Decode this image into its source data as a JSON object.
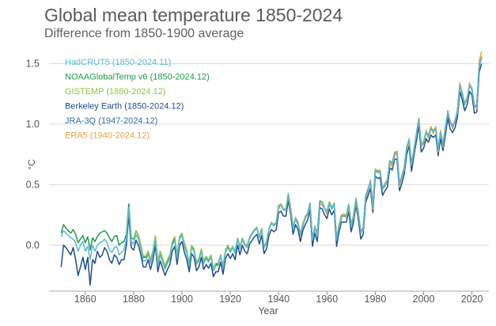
{
  "title": "Global mean temperature 1850-2024",
  "subtitle": "Difference from 1850-1900 average",
  "chart_data": {
    "type": "line",
    "title": "Global mean temperature 1850-2024",
    "subtitle": "Difference from 1850-1900 average",
    "xlabel": "Year",
    "ylabel": "°C",
    "xlim": [
      1845,
      2027
    ],
    "ylim": [
      -0.38,
      1.62
    ],
    "xticks": [
      1860,
      1880,
      1900,
      1920,
      1940,
      1960,
      1980,
      2000,
      2020
    ],
    "yticks": [
      0.0,
      0.5,
      1.0,
      1.5
    ],
    "ytick_labels": [
      "0.0",
      "0.5",
      "1.0",
      "1.5"
    ],
    "grid": "horizontal",
    "legend_position": "top-left",
    "series": [
      {
        "name": "HadCRUT5 (1850-2024.11)",
        "color": "#5bb8d4",
        "start": 1850,
        "values": [
          0.07,
          0.12,
          0.1,
          0.08,
          0.06,
          0.05,
          0.02,
          -0.05,
          0.0,
          0.03,
          -0.05,
          -0.01,
          -0.12,
          0.0,
          -0.05,
          0.0,
          0.02,
          0.03,
          0.05,
          0.02,
          -0.04,
          -0.06,
          -0.02,
          -0.01,
          -0.08,
          -0.06,
          -0.04,
          0.05,
          0.31,
          0.03,
          0.01,
          0.09,
          0.05,
          -0.03,
          -0.13,
          -0.13,
          -0.07,
          -0.15,
          -0.07,
          0.05,
          -0.17,
          -0.08,
          -0.14,
          -0.2,
          -0.15,
          -0.11,
          0.0,
          0.04,
          -0.11,
          0.05,
          0.08,
          -0.01,
          -0.07,
          -0.17,
          -0.02,
          -0.05,
          -0.16,
          -0.13,
          -0.05,
          -0.15,
          -0.11,
          -0.14,
          -0.1,
          -0.21,
          -0.17,
          -0.17,
          -0.09,
          -0.19,
          -0.06,
          -0.02,
          -0.06,
          -0.02,
          -0.07,
          0.05,
          -0.03,
          0.05,
          0.0,
          -0.02,
          0.06,
          0.09,
          0.12,
          0.14,
          0.06,
          0.13,
          -0.02,
          0.02,
          0.13,
          0.18,
          0.16,
          0.18,
          0.32,
          0.33,
          0.29,
          0.29,
          0.42,
          0.3,
          0.14,
          0.22,
          0.18,
          0.08,
          0.17,
          0.22,
          0.26,
          0.34,
          0.04,
          0.15,
          0.08,
          0.36,
          0.35,
          0.3,
          0.27,
          0.35,
          0.3,
          0.34,
          0.04,
          0.16,
          0.24,
          0.24,
          0.24,
          0.33,
          0.16,
          0.24,
          0.38,
          0.26,
          0.1,
          0.14,
          0.4,
          0.46,
          0.52,
          0.32,
          0.62,
          0.6,
          0.61,
          0.46,
          0.5,
          0.53,
          0.69,
          0.67,
          0.76,
          0.76,
          0.5,
          0.56,
          0.64,
          0.8,
          0.87,
          0.66,
          0.79,
          0.91,
          1.04,
          0.82,
          0.85,
          0.93,
          0.9,
          0.96,
          0.94,
          0.96,
          0.79,
          0.93,
          0.83,
          0.96,
          1.1,
          1.01,
          0.98,
          1.02,
          1.11,
          1.32,
          1.25,
          1.16,
          1.21,
          1.32,
          1.29,
          1.14,
          1.15,
          1.48,
          1.55
        ]
      },
      {
        "name": "NOAAGlobalTemp v6 (1850-2024.12)",
        "color": "#1f9a4b",
        "start": 1850,
        "values": [
          0.1,
          0.17,
          0.14,
          0.12,
          0.1,
          0.13,
          0.09,
          0.02,
          0.05,
          0.08,
          0.02,
          0.07,
          -0.04,
          0.06,
          0.03,
          0.07,
          0.1,
          0.11,
          0.12,
          0.1,
          0.06,
          0.03,
          0.07,
          0.08,
          0.0,
          0.02,
          0.03,
          0.09,
          0.34,
          0.06,
          0.05,
          0.12,
          0.08,
          0.0,
          -0.1,
          -0.1,
          -0.06,
          -0.13,
          -0.06,
          0.07,
          -0.15,
          -0.07,
          -0.12,
          -0.18,
          -0.14,
          -0.1,
          0.01,
          0.06,
          -0.09,
          0.06,
          0.09,
          0.0,
          -0.06,
          -0.16,
          -0.01,
          -0.04,
          -0.15,
          -0.12,
          -0.05,
          -0.14,
          -0.1,
          -0.13,
          -0.09,
          -0.2,
          -0.16,
          -0.16,
          -0.09,
          -0.18,
          -0.05,
          -0.01,
          -0.05,
          -0.02,
          -0.06,
          0.05,
          -0.02,
          0.05,
          0.0,
          -0.01,
          0.06,
          0.09,
          0.12,
          0.14,
          0.06,
          0.13,
          -0.02,
          0.02,
          0.13,
          0.18,
          0.16,
          0.18,
          0.32,
          0.33,
          0.29,
          0.29,
          0.42,
          0.3,
          0.14,
          0.22,
          0.18,
          0.08,
          0.17,
          0.22,
          0.26,
          0.34,
          0.04,
          0.15,
          0.08,
          0.36,
          0.35,
          0.3,
          0.27,
          0.35,
          0.3,
          0.34,
          0.04,
          0.16,
          0.24,
          0.24,
          0.24,
          0.33,
          0.16,
          0.24,
          0.38,
          0.26,
          0.1,
          0.14,
          0.4,
          0.46,
          0.52,
          0.32,
          0.62,
          0.6,
          0.61,
          0.46,
          0.5,
          0.53,
          0.69,
          0.67,
          0.76,
          0.76,
          0.5,
          0.56,
          0.64,
          0.8,
          0.87,
          0.66,
          0.79,
          0.91,
          1.04,
          0.82,
          0.85,
          0.93,
          0.9,
          0.96,
          0.94,
          0.96,
          0.79,
          0.93,
          0.83,
          0.96,
          1.1,
          1.01,
          0.98,
          1.02,
          1.11,
          1.32,
          1.25,
          1.16,
          1.21,
          1.32,
          1.29,
          1.14,
          1.15,
          1.48,
          1.55
        ]
      },
      {
        "name": "GISTEMP (1880-2024.12)",
        "color": "#8cc63f",
        "start": 1880,
        "values": [
          0.05,
          0.12,
          0.08,
          0.0,
          -0.09,
          -0.09,
          -0.05,
          -0.12,
          -0.04,
          0.08,
          -0.13,
          -0.05,
          -0.11,
          -0.17,
          -0.12,
          -0.08,
          0.03,
          0.07,
          -0.08,
          0.07,
          0.1,
          0.02,
          -0.04,
          -0.15,
          0.0,
          -0.03,
          -0.14,
          -0.11,
          -0.03,
          -0.13,
          -0.09,
          -0.12,
          -0.08,
          -0.19,
          -0.15,
          -0.15,
          -0.08,
          -0.17,
          -0.04,
          0.0,
          -0.04,
          -0.01,
          -0.05,
          0.06,
          -0.01,
          0.06,
          0.01,
          0.0,
          0.07,
          0.1,
          0.13,
          0.15,
          0.07,
          0.14,
          -0.01,
          0.03,
          0.14,
          0.19,
          0.17,
          0.19,
          0.33,
          0.34,
          0.3,
          0.3,
          0.43,
          0.31,
          0.15,
          0.23,
          0.19,
          0.09,
          0.18,
          0.23,
          0.27,
          0.35,
          0.05,
          0.16,
          0.09,
          0.37,
          0.36,
          0.31,
          0.28,
          0.36,
          0.31,
          0.35,
          0.05,
          0.17,
          0.25,
          0.25,
          0.25,
          0.34,
          0.17,
          0.25,
          0.39,
          0.27,
          0.11,
          0.15,
          0.41,
          0.47,
          0.53,
          0.33,
          0.63,
          0.61,
          0.62,
          0.47,
          0.51,
          0.54,
          0.7,
          0.68,
          0.77,
          0.77,
          0.51,
          0.57,
          0.65,
          0.81,
          0.88,
          0.67,
          0.8,
          0.92,
          1.05,
          0.83,
          0.86,
          0.94,
          0.91,
          0.97,
          0.95,
          0.97,
          0.8,
          0.94,
          0.84,
          0.97,
          1.11,
          1.02,
          0.99,
          1.03,
          1.12,
          1.33,
          1.26,
          1.17,
          1.22,
          1.33,
          1.3,
          1.15,
          1.16,
          1.49,
          1.56
        ]
      },
      {
        "name": "Berkeley Earth (1850-2024.12)",
        "color": "#1f4e8c",
        "start": 1850,
        "values": [
          -0.18,
          0.0,
          -0.02,
          -0.05,
          -0.08,
          -0.02,
          -0.12,
          -0.25,
          -0.18,
          -0.1,
          -0.2,
          -0.1,
          -0.33,
          -0.12,
          -0.15,
          -0.05,
          -0.1,
          -0.08,
          -0.02,
          -0.05,
          -0.12,
          -0.15,
          -0.08,
          -0.1,
          -0.16,
          -0.12,
          -0.12,
          0.0,
          0.25,
          -0.02,
          -0.04,
          0.04,
          0.0,
          -0.08,
          -0.18,
          -0.18,
          -0.12,
          -0.2,
          -0.12,
          0.0,
          -0.22,
          -0.13,
          -0.19,
          -0.25,
          -0.2,
          -0.16,
          -0.05,
          -0.01,
          -0.16,
          0.0,
          0.03,
          -0.06,
          -0.12,
          -0.22,
          -0.07,
          -0.1,
          -0.21,
          -0.18,
          -0.1,
          -0.2,
          -0.16,
          -0.19,
          -0.15,
          -0.26,
          -0.22,
          -0.22,
          -0.14,
          -0.24,
          -0.11,
          -0.07,
          -0.11,
          -0.07,
          -0.12,
          0.0,
          -0.08,
          0.0,
          -0.05,
          -0.07,
          0.01,
          0.04,
          0.07,
          0.09,
          0.01,
          0.08,
          -0.07,
          -0.03,
          0.08,
          0.13,
          0.11,
          0.13,
          0.27,
          0.28,
          0.24,
          0.24,
          0.37,
          0.25,
          0.09,
          0.17,
          0.13,
          0.03,
          0.12,
          0.17,
          0.21,
          0.29,
          -0.01,
          0.1,
          0.03,
          0.31,
          0.3,
          0.25,
          0.22,
          0.3,
          0.25,
          0.29,
          -0.01,
          0.11,
          0.19,
          0.19,
          0.19,
          0.28,
          0.11,
          0.19,
          0.33,
          0.21,
          0.05,
          0.09,
          0.35,
          0.41,
          0.47,
          0.27,
          0.57,
          0.55,
          0.56,
          0.41,
          0.45,
          0.48,
          0.64,
          0.62,
          0.71,
          0.71,
          0.45,
          0.51,
          0.59,
          0.75,
          0.82,
          0.61,
          0.74,
          0.86,
          0.99,
          0.77,
          0.8,
          0.88,
          0.85,
          0.91,
          0.89,
          0.91,
          0.74,
          0.88,
          0.78,
          0.91,
          1.05,
          0.96,
          0.93,
          0.97,
          1.06,
          1.27,
          1.2,
          1.11,
          1.16,
          1.27,
          1.24,
          1.09,
          1.1,
          1.43,
          1.5
        ]
      },
      {
        "name": "JRA-3Q (1947-2024.12)",
        "color": "#2e6fa8",
        "start": 1947,
        "values": [
          0.22,
          0.18,
          0.08,
          0.17,
          0.22,
          0.26,
          0.34,
          0.04,
          0.15,
          0.08,
          0.36,
          0.35,
          0.3,
          0.27,
          0.35,
          0.3,
          0.34,
          0.04,
          0.16,
          0.24,
          0.24,
          0.24,
          0.33,
          0.16,
          0.24,
          0.38,
          0.26,
          0.1,
          0.14,
          0.4,
          0.46,
          0.52,
          0.32,
          0.62,
          0.6,
          0.61,
          0.46,
          0.5,
          0.53,
          0.69,
          0.67,
          0.76,
          0.76,
          0.5,
          0.56,
          0.64,
          0.8,
          0.87,
          0.66,
          0.79,
          0.91,
          1.04,
          0.82,
          0.85,
          0.93,
          0.9,
          0.96,
          0.94,
          0.96,
          0.79,
          0.93,
          0.83,
          0.96,
          1.1,
          1.01,
          0.98,
          1.02,
          1.11,
          1.32,
          1.25,
          1.16,
          1.21,
          1.32,
          1.29,
          1.14,
          1.15,
          1.48,
          1.55
        ]
      },
      {
        "name": "ERA5 (1940-2024.12)",
        "color": "#e8a23a",
        "start": 1940,
        "values": [
          0.3,
          0.34,
          0.3,
          0.3,
          0.4,
          0.28,
          0.15,
          0.21,
          0.17,
          0.1,
          0.15,
          0.24,
          0.25,
          0.32,
          0.06,
          0.13,
          0.1,
          0.34,
          0.33,
          0.31,
          0.25,
          0.33,
          0.31,
          0.32,
          0.06,
          0.14,
          0.22,
          0.26,
          0.22,
          0.31,
          0.18,
          0.22,
          0.36,
          0.24,
          0.12,
          0.12,
          0.38,
          0.44,
          0.54,
          0.3,
          0.6,
          0.62,
          0.59,
          0.48,
          0.48,
          0.55,
          0.67,
          0.65,
          0.74,
          0.78,
          0.48,
          0.58,
          0.62,
          0.82,
          0.85,
          0.68,
          0.77,
          0.93,
          1.02,
          0.84,
          0.83,
          0.95,
          0.88,
          0.98,
          0.92,
          0.98,
          0.77,
          0.95,
          0.81,
          0.98,
          1.08,
          1.03,
          0.96,
          1.04,
          1.09,
          1.34,
          1.23,
          1.18,
          1.19,
          1.34,
          1.27,
          1.16,
          1.13,
          1.52,
          1.6
        ]
      }
    ]
  }
}
